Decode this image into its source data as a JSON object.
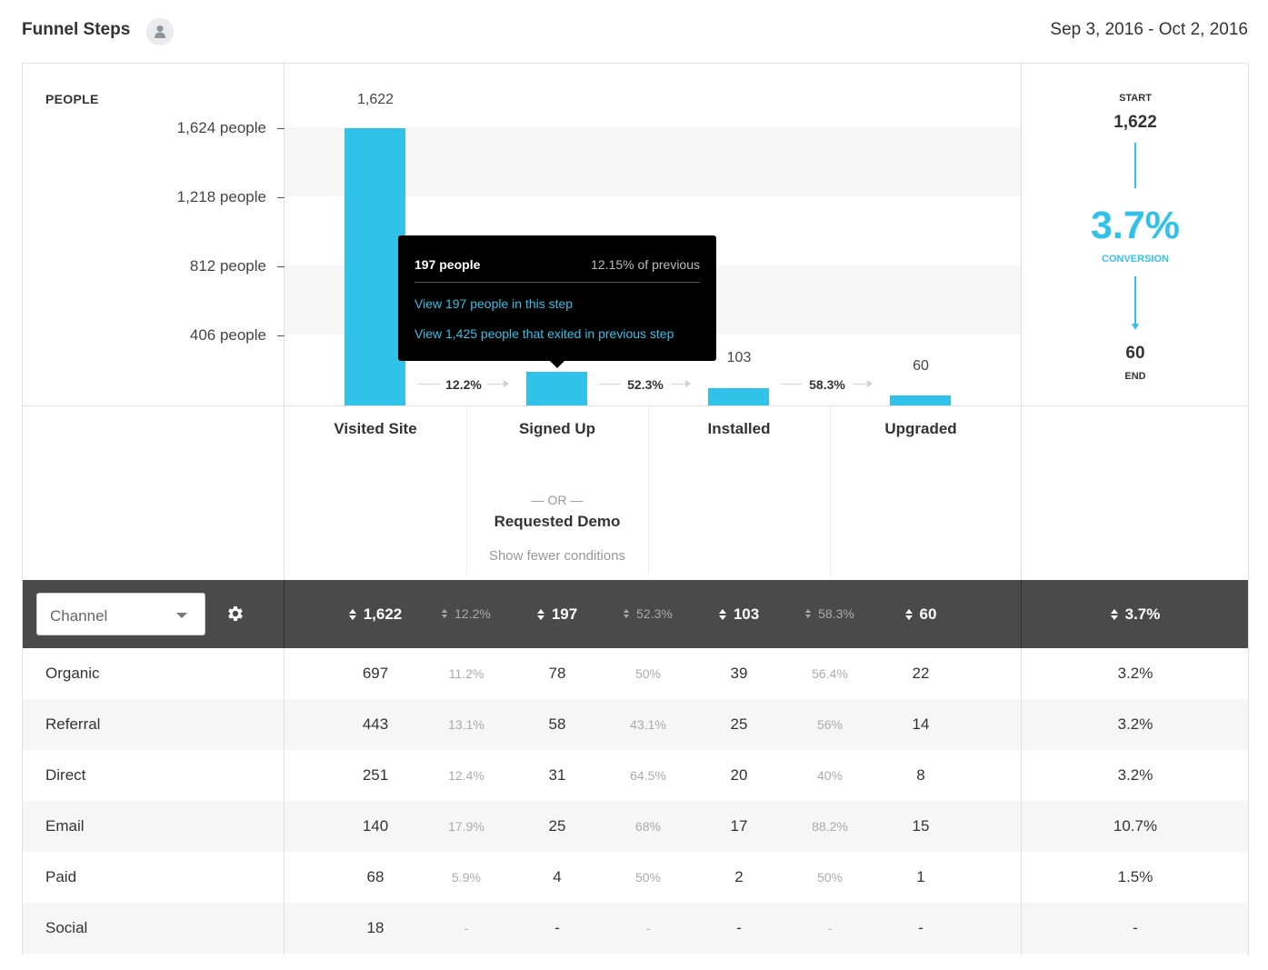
{
  "header": {
    "title": "Funnel Steps",
    "date_range": "Sep 3, 2016 - Oct 2, 2016"
  },
  "chart": {
    "y_axis_title": "PEOPLE",
    "y_ticks": [
      "1,624 people",
      "1,218 people",
      "812 people",
      "406 people"
    ],
    "bar_labels": [
      "1,622",
      "",
      "103",
      "60"
    ],
    "step_conversions": [
      "12.2%",
      "52.3%",
      "58.3%"
    ],
    "steps": [
      "Visited Site",
      "Signed Up",
      "Installed",
      "Upgraded"
    ],
    "or_label": "— OR —",
    "alt_step": "Requested Demo",
    "show_fewer": "Show fewer conditions"
  },
  "chart_data": {
    "type": "bar",
    "categories": [
      "Visited Site",
      "Signed Up",
      "Installed",
      "Upgraded"
    ],
    "values": [
      1622,
      197,
      103,
      60
    ],
    "ylabel": "PEOPLE",
    "ylim": [
      0,
      1624
    ],
    "yticks": [
      406,
      812,
      1218,
      1624
    ],
    "bar_color": "#30c2e8"
  },
  "tooltip": {
    "people": "197 people",
    "of_previous": "12.15% of previous",
    "link1": "View 197 people in this step",
    "link2": "View 1,425 people that exited in previous step"
  },
  "conversion": {
    "start_label": "START",
    "start": "1,622",
    "pct": "3.7%",
    "pct_label": "CONVERSION",
    "end": "60",
    "end_label": "END"
  },
  "table": {
    "segment_select": "Channel",
    "header": [
      "1,622",
      "12.2%",
      "197",
      "52.3%",
      "103",
      "58.3%",
      "60"
    ],
    "header_conversion": "3.7%",
    "rows": [
      {
        "name": "Organic",
        "cells": [
          "697",
          "11.2%",
          "78",
          "50%",
          "39",
          "56.4%",
          "22"
        ],
        "conversion": "3.2%"
      },
      {
        "name": "Referral",
        "cells": [
          "443",
          "13.1%",
          "58",
          "43.1%",
          "25",
          "56%",
          "14"
        ],
        "conversion": "3.2%"
      },
      {
        "name": "Direct",
        "cells": [
          "251",
          "12.4%",
          "31",
          "64.5%",
          "20",
          "40%",
          "8"
        ],
        "conversion": "3.2%"
      },
      {
        "name": "Email",
        "cells": [
          "140",
          "17.9%",
          "25",
          "68%",
          "17",
          "88.2%",
          "15"
        ],
        "conversion": "10.7%"
      },
      {
        "name": "Paid",
        "cells": [
          "68",
          "5.9%",
          "4",
          "50%",
          "2",
          "50%",
          "1"
        ],
        "conversion": "1.5%"
      },
      {
        "name": "Social",
        "cells": [
          "18",
          "-",
          "-",
          "-",
          "-",
          "-",
          "-"
        ],
        "conversion": "-"
      }
    ]
  },
  "colors": {
    "accent": "#30c2e8",
    "header_bg": "#4a4a4a",
    "tooltip_bg": "#000000"
  }
}
